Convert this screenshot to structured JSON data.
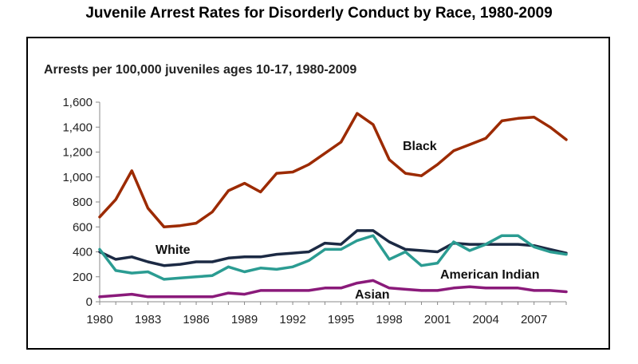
{
  "chart_data": {
    "type": "line",
    "title": "Juvenile Arrest Rates for Disorderly Conduct by Race, 1980-2009",
    "subtitle": "Arrests per 100,000 juveniles ages 10-17, 1980-2009",
    "xlabel": "",
    "ylabel": "",
    "xlim": [
      1980,
      2009
    ],
    "ylim": [
      0,
      1600
    ],
    "y_ticks": [
      0,
      200,
      400,
      600,
      800,
      1000,
      1200,
      1400,
      1600
    ],
    "y_tick_labels": [
      "0",
      "200",
      "400",
      "600",
      "800",
      "1,000",
      "1,200",
      "1,400",
      "1,600"
    ],
    "x_ticks": [
      1980,
      1983,
      1986,
      1989,
      1992,
      1995,
      1998,
      2001,
      2004,
      2007
    ],
    "x_tick_labels": [
      "1980",
      "1983",
      "1986",
      "1989",
      "1992",
      "1995",
      "1998",
      "2001",
      "2004",
      "2007"
    ],
    "grid": false,
    "legend": "inline labels",
    "x": [
      1980,
      1981,
      1982,
      1983,
      1984,
      1985,
      1986,
      1987,
      1988,
      1989,
      1990,
      1991,
      1992,
      1993,
      1994,
      1995,
      1996,
      1997,
      1998,
      1999,
      2000,
      2001,
      2002,
      2003,
      2004,
      2005,
      2006,
      2007,
      2008,
      2009
    ],
    "series": [
      {
        "name": "Black",
        "color": "#9c2a00",
        "values": [
          680,
          820,
          1050,
          750,
          600,
          610,
          630,
          720,
          890,
          950,
          880,
          1030,
          1040,
          1100,
          1190,
          1280,
          1510,
          1420,
          1140,
          1030,
          1010,
          1100,
          1210,
          1260,
          1310,
          1450,
          1470,
          1480,
          1400,
          1300
        ]
      },
      {
        "name": "White",
        "color": "#1c2a44",
        "values": [
          400,
          340,
          360,
          320,
          290,
          300,
          320,
          320,
          350,
          360,
          360,
          380,
          390,
          400,
          470,
          460,
          570,
          570,
          480,
          420,
          410,
          400,
          470,
          460,
          460,
          460,
          460,
          450,
          420,
          390
        ]
      },
      {
        "name": "American Indian",
        "color": "#2b9c92",
        "values": [
          420,
          250,
          230,
          240,
          180,
          190,
          200,
          210,
          280,
          240,
          270,
          260,
          280,
          330,
          420,
          420,
          490,
          530,
          340,
          400,
          290,
          310,
          480,
          410,
          460,
          530,
          530,
          440,
          400,
          380
        ]
      },
      {
        "name": "Asian",
        "color": "#8a1a7a",
        "values": [
          40,
          50,
          60,
          40,
          40,
          40,
          40,
          40,
          70,
          60,
          90,
          90,
          90,
          90,
          110,
          110,
          150,
          170,
          110,
          100,
          90,
          90,
          110,
          120,
          110,
          110,
          110,
          90,
          90,
          80
        ]
      }
    ]
  }
}
